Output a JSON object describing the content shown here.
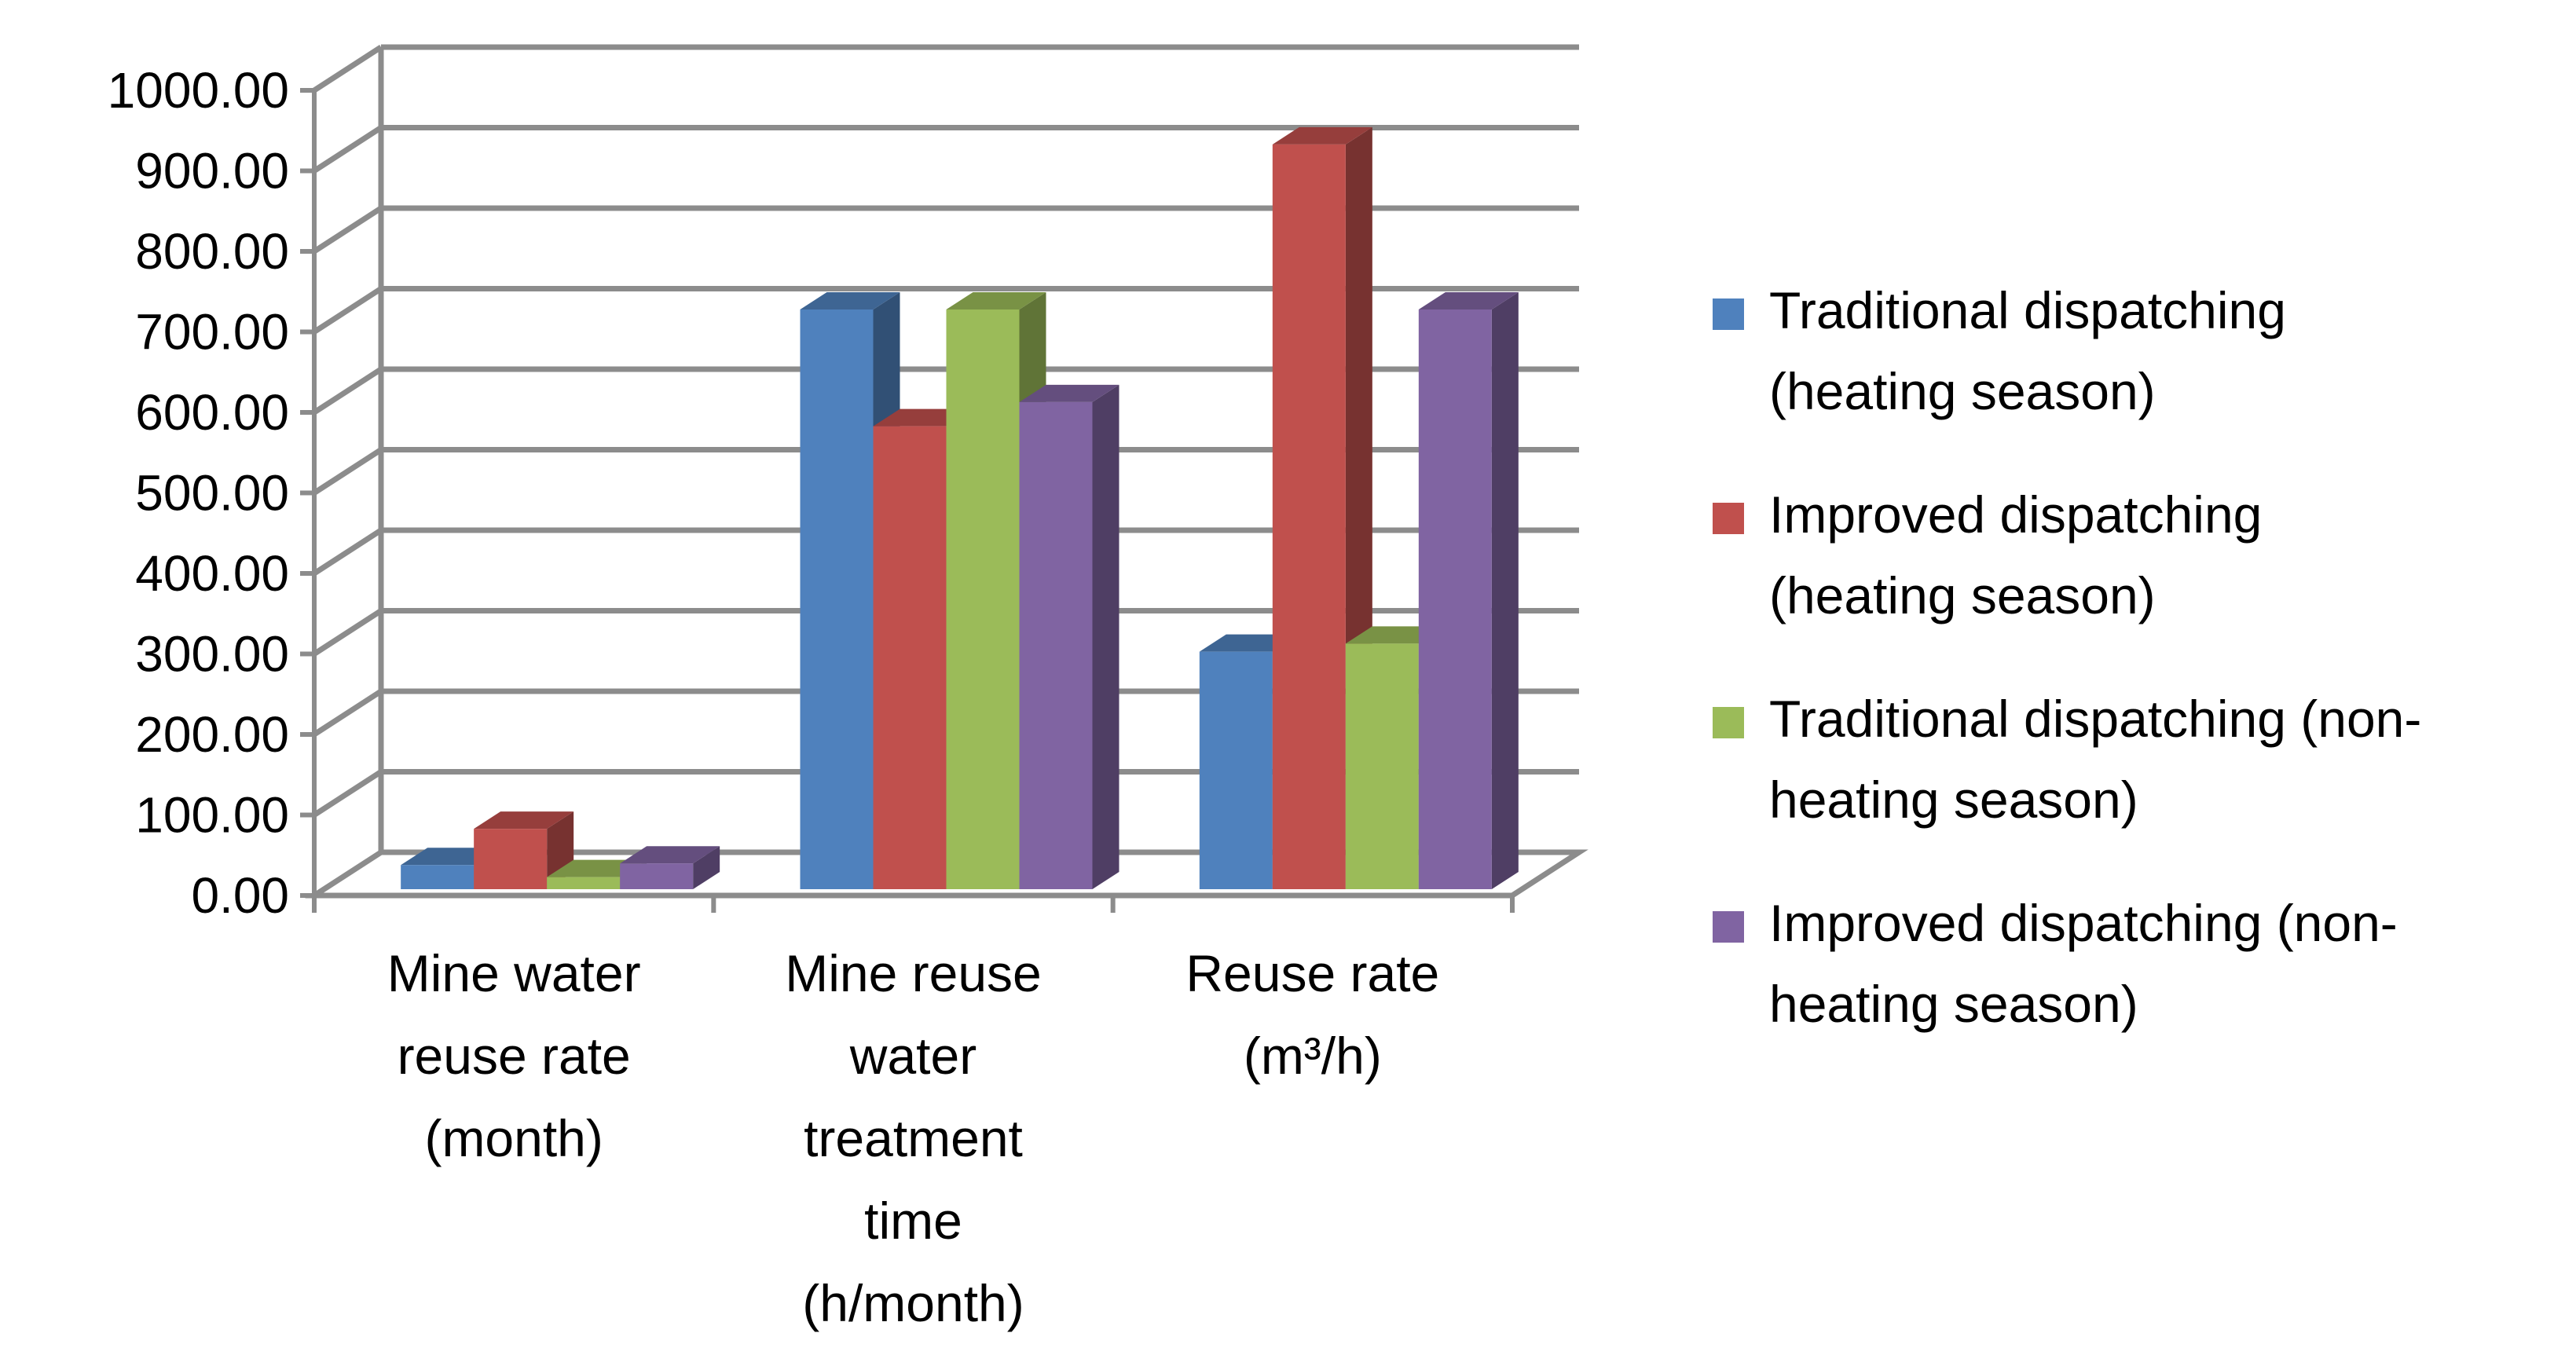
{
  "chart_data": {
    "type": "bar",
    "title": "",
    "xlabel": "",
    "ylabel": "",
    "ylim": [
      0,
      1000
    ],
    "y_ticks": [
      "0.00",
      "100.00",
      "200.00",
      "300.00",
      "400.00",
      "500.00",
      "600.00",
      "700.00",
      "800.00",
      "900.00",
      "1000.00"
    ],
    "grid": true,
    "three_d": true,
    "legend_position": "right",
    "categories": [
      [
        "Mine water",
        "reuse rate",
        "(month)"
      ],
      [
        "Mine reuse",
        "water",
        "treatment",
        "time",
        "(h/month)"
      ],
      [
        "Reuse rate",
        "(m³/h)"
      ]
    ],
    "series": [
      {
        "name": [
          "Traditional dispatching",
          "(heating season)"
        ],
        "color": "#4F81BD",
        "values": [
          30,
          720,
          295
        ]
      },
      {
        "name": [
          "Improved dispatching",
          "(heating season)"
        ],
        "color": "#C0504D",
        "values": [
          75,
          575,
          925
        ]
      },
      {
        "name": [
          "Traditional dispatching (non-",
          "heating season)"
        ],
        "color": "#9BBB59",
        "values": [
          15,
          720,
          305
        ]
      },
      {
        "name": [
          "Improved dispatching (non-",
          "heating season)"
        ],
        "color": "#8064A2",
        "values": [
          32,
          605,
          720
        ]
      }
    ]
  }
}
